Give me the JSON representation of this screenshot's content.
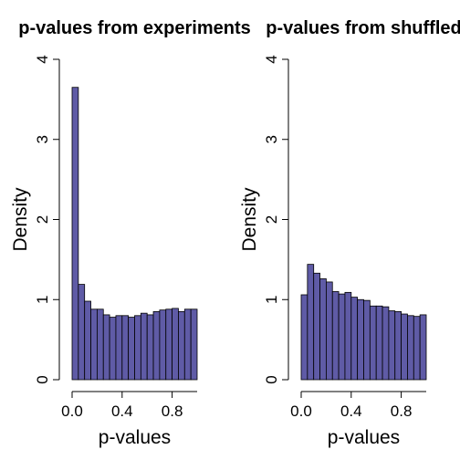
{
  "chart_data": [
    {
      "type": "histogram",
      "title": "p-values from experiments",
      "xlabel": "p-values",
      "ylabel": "Density",
      "color": "#5f5ba6",
      "bins": [
        0,
        0.05,
        0.1,
        0.15,
        0.2,
        0.25,
        0.3,
        0.35,
        0.4,
        0.45,
        0.5,
        0.55,
        0.6,
        0.65,
        0.7,
        0.75,
        0.8,
        0.85,
        0.9,
        0.95,
        1
      ],
      "values": [
        3.65,
        1.19,
        0.98,
        0.88,
        0.88,
        0.81,
        0.78,
        0.8,
        0.8,
        0.78,
        0.8,
        0.83,
        0.81,
        0.85,
        0.87,
        0.88,
        0.89,
        0.85,
        0.88,
        0.88
      ],
      "xlim": [
        0,
        1
      ],
      "xticks": [
        {
          "value": 0,
          "label": "0.0"
        },
        {
          "value": 0.4,
          "label": "0.4"
        },
        {
          "value": 0.8,
          "label": "0.8"
        }
      ],
      "ylim": [
        0,
        4
      ],
      "yticks": [
        0,
        1,
        2,
        3,
        4
      ]
    },
    {
      "type": "histogram",
      "title": "p-values from shuffled",
      "xlabel": "p-values",
      "ylabel": "Density",
      "color": "#5f5ba6",
      "bins": [
        0,
        0.05,
        0.1,
        0.15,
        0.2,
        0.25,
        0.3,
        0.35,
        0.4,
        0.45,
        0.5,
        0.55,
        0.6,
        0.65,
        0.7,
        0.75,
        0.8,
        0.85,
        0.9,
        0.95,
        1
      ],
      "values": [
        1.06,
        1.44,
        1.33,
        1.26,
        1.22,
        1.1,
        1.07,
        1.09,
        1.03,
        1.0,
        0.99,
        0.92,
        0.92,
        0.91,
        0.86,
        0.85,
        0.82,
        0.8,
        0.79,
        0.81
      ],
      "xlim": [
        0,
        1
      ],
      "xticks": [
        {
          "value": 0,
          "label": "0.0"
        },
        {
          "value": 0.4,
          "label": "0.4"
        },
        {
          "value": 0.8,
          "label": "0.8"
        }
      ],
      "ylim": [
        0,
        4
      ],
      "yticks": [
        0,
        1,
        2,
        3,
        4
      ]
    }
  ]
}
